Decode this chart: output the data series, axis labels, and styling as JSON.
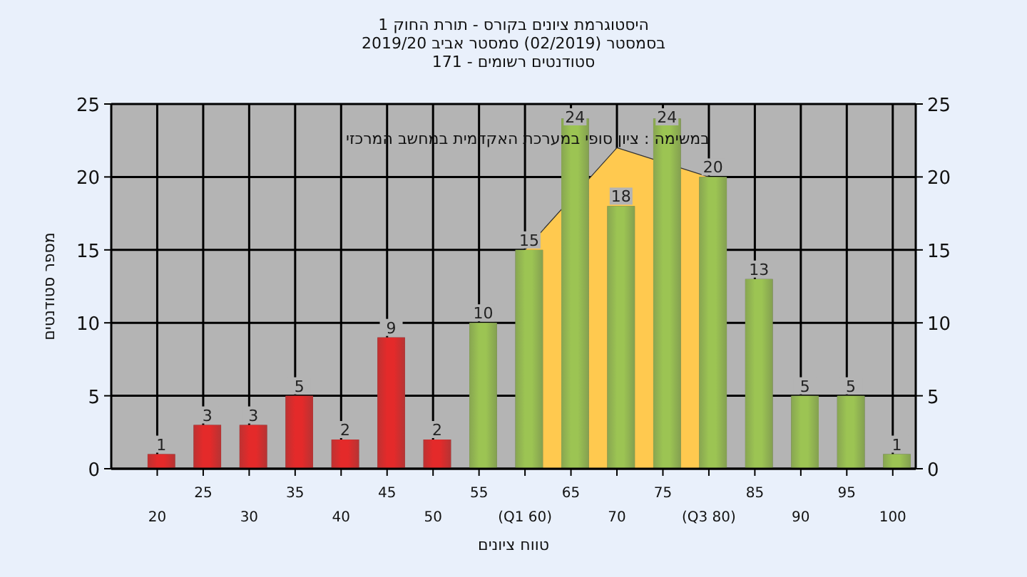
{
  "chart_data": {
    "type": "bar",
    "title": "היסטוגרמת ציונים בקורס - תורת החוק 1",
    "subtitle": "בסמסטר  (02/2019)  סמסטר אביב 2019/20\nסטודנטים רשומים - 171",
    "xlabel": "טווח ציונים",
    "ylabel": "מספר סטודנטים",
    "annotations": [
      "במשימה : ציון סופי במערכת האקדמית במחשב המרכזי"
    ],
    "categories": [
      "20",
      "25",
      "30",
      "35",
      "40",
      "45",
      "50",
      "55",
      "(Q1 60)",
      "65",
      "70",
      "75",
      "(Q3 80)",
      "85",
      "90",
      "95",
      "100"
    ],
    "series": [
      {
        "type": "area",
        "color": "#ffc94f",
        "x": [
          "(Q1 60)",
          "70",
          "(Q3 80)"
        ],
        "values": [
          15,
          22,
          20
        ]
      },
      {
        "value_labels": [
          "1",
          "3",
          "3",
          "5",
          "2",
          "9",
          "2",
          "10",
          "15",
          "24",
          "18",
          "24",
          "20",
          "13",
          "5",
          "5",
          "1"
        ],
        "colors": [
          "#e42a2a",
          "#e42a2a",
          "#e42a2a",
          "#e42a2a",
          "#e42a2a",
          "#e42a2a",
          "#e42a2a",
          "#9cc453",
          "#9cc453",
          "#9cc453",
          "#9cc453",
          "#9cc453",
          "#9cc453",
          "#9cc453",
          "#9cc453",
          "#9cc453",
          "#9cc453"
        ],
        "values": [
          1,
          3,
          3,
          5,
          2,
          9,
          2,
          10,
          15,
          24,
          18,
          24,
          20,
          13,
          5,
          5,
          1
        ]
      }
    ],
    "ylim": [
      0,
      25
    ],
    "yticks": [
      0,
      5,
      10,
      15,
      20,
      25
    ],
    "y2lim": [
      0,
      25
    ],
    "y2ticks": [
      0,
      5,
      10,
      15,
      20,
      25
    ],
    "grid": true
  }
}
